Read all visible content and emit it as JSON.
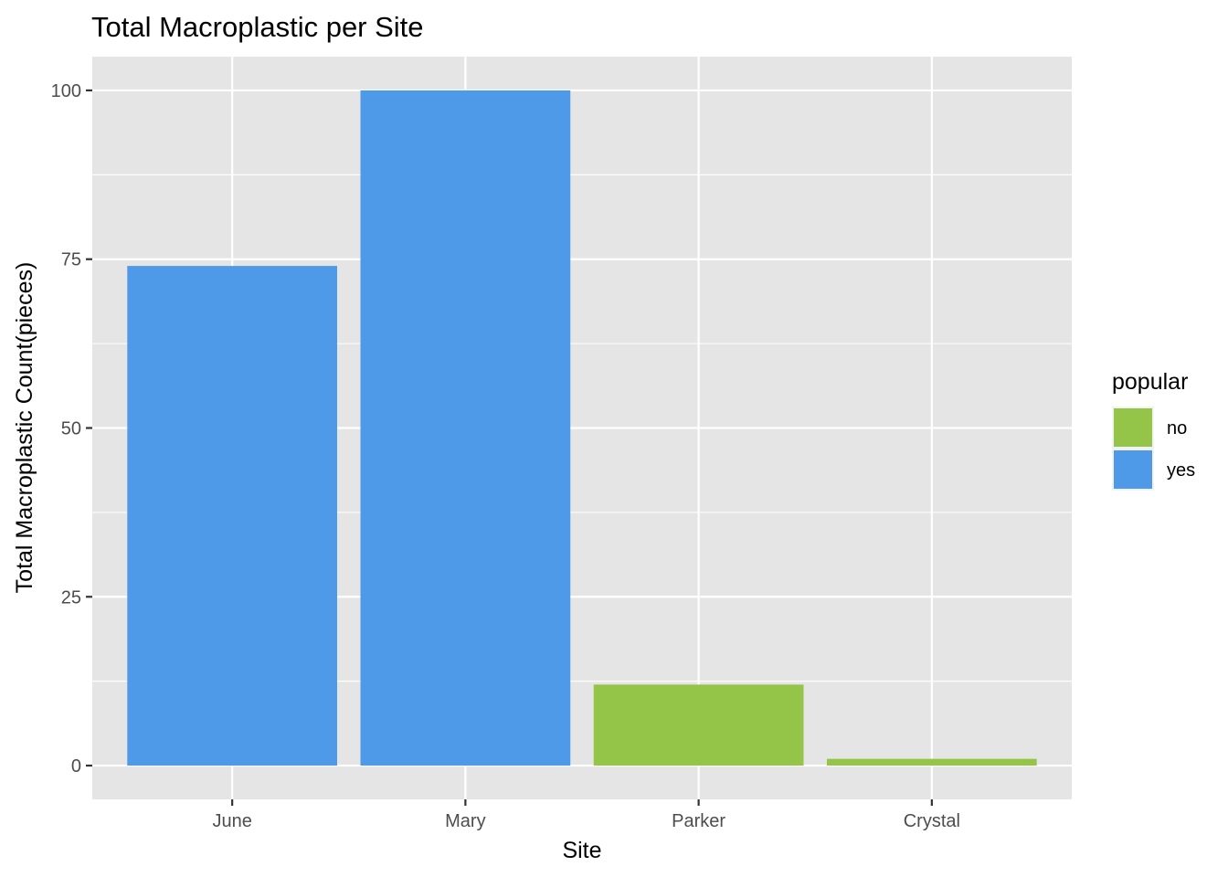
{
  "chart_data": {
    "type": "bar",
    "title": "Total Macroplastic per Site",
    "xlabel": "Site",
    "ylabel": "Total Macroplastic Count(pieces)",
    "categories": [
      "June",
      "Mary",
      "Parker",
      "Crystal"
    ],
    "values": [
      74,
      100,
      12,
      1
    ],
    "fill_group": [
      "yes",
      "yes",
      "no",
      "no"
    ],
    "ylim": [
      -5,
      105
    ],
    "yticks": [
      0,
      25,
      50,
      75,
      100
    ],
    "ytick_labels": [
      "0",
      "25",
      "50",
      "75",
      "100"
    ],
    "grid": true,
    "legend": {
      "title": "popular",
      "position": "right",
      "entries": [
        {
          "label": "no",
          "color": "#95C548"
        },
        {
          "label": "yes",
          "color": "#4F9AE8"
        }
      ]
    },
    "colors": {
      "panel_background": "#E5E5E5",
      "grid": "#FFFFFF",
      "tick_text": "#4D4D4D"
    }
  }
}
